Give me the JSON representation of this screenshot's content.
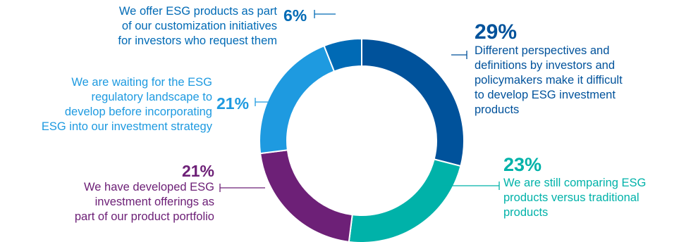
{
  "chart_data": {
    "type": "pie",
    "donut": true,
    "title": "",
    "slices": [
      {
        "value": 29,
        "label": "29%",
        "text": [
          "Different perspectives and",
          "definitions by investors and",
          "policymakers make it difficult",
          "to develop ESG investment",
          "products"
        ],
        "color": "#00529b"
      },
      {
        "value": 23,
        "label": "23%",
        "text": [
          "We are still comparing ESG",
          "products versus traditional",
          "products"
        ],
        "color": "#00b2a9"
      },
      {
        "value": 21,
        "label": "21%",
        "text": [
          "We have developed ESG",
          "investment offerings as",
          "part of our product portfolio"
        ],
        "color": "#6d2077"
      },
      {
        "value": 21,
        "label": "21%",
        "text": [
          "We are waiting for the ESG",
          "regulatory landscape to",
          "develop before incorporating",
          "ESG into our investment strategy"
        ],
        "color": "#1e9ae0"
      },
      {
        "value": 6,
        "label": "6%",
        "text": [
          "We offer ESG products as part",
          "of our customization initiatives",
          "for investors who request them"
        ],
        "color": "#006ab5"
      }
    ]
  }
}
